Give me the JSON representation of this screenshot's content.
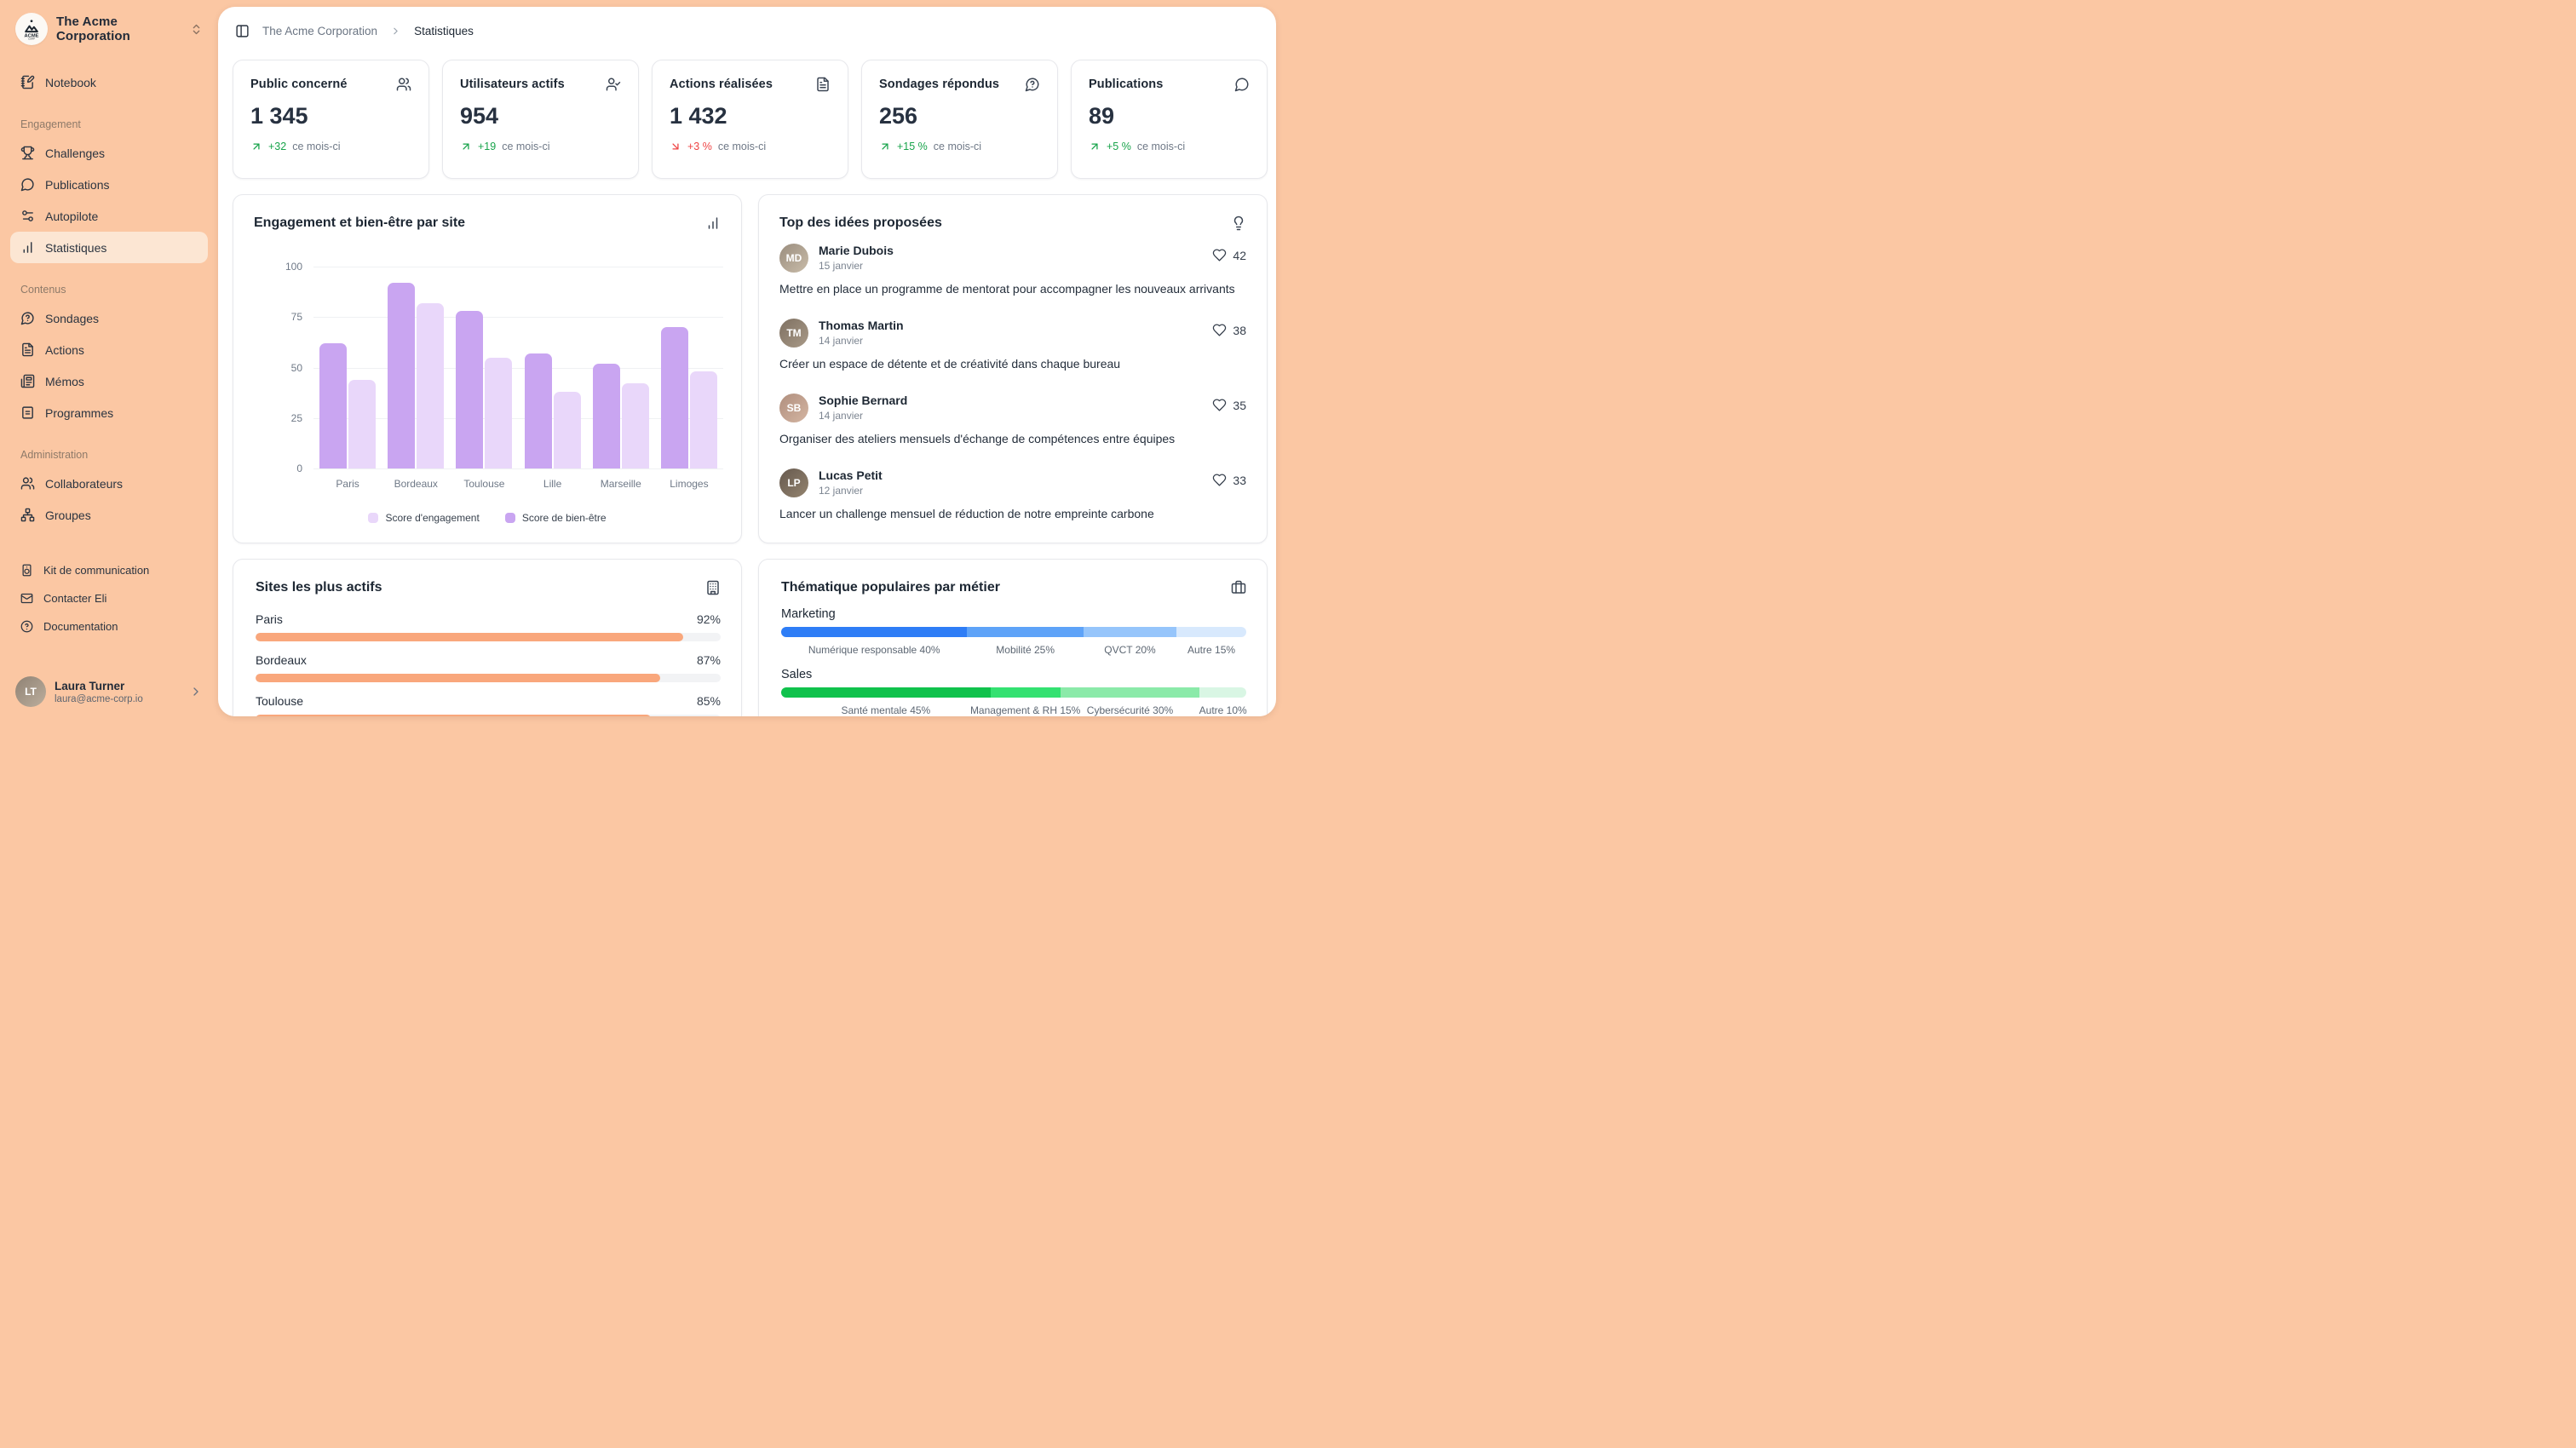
{
  "sidebar": {
    "org_name": "The Acme Corporation",
    "sections": [
      {
        "items": [
          {
            "label": "Notebook",
            "icon": "notebook"
          }
        ]
      },
      {
        "label": "Engagement",
        "items": [
          {
            "label": "Challenges",
            "icon": "trophy"
          },
          {
            "label": "Publications",
            "icon": "message-circle"
          },
          {
            "label": "Autopilote",
            "icon": "sliders"
          },
          {
            "label": "Statistiques",
            "icon": "bar-chart",
            "active": true
          }
        ]
      },
      {
        "label": "Contenus",
        "items": [
          {
            "label": "Sondages",
            "icon": "message-question"
          },
          {
            "label": "Actions",
            "icon": "file-text"
          },
          {
            "label": "Mémos",
            "icon": "newspaper"
          },
          {
            "label": "Programmes",
            "icon": "layout-list"
          }
        ]
      },
      {
        "label": "Administration",
        "items": [
          {
            "label": "Collaborateurs",
            "icon": "users"
          },
          {
            "label": "Groupes",
            "icon": "network"
          }
        ]
      },
      {
        "gap": true,
        "small": true,
        "items": [
          {
            "label": "Kit de communication",
            "icon": "speaker"
          },
          {
            "label": "Contacter Eli",
            "icon": "mail"
          },
          {
            "label": "Documentation",
            "icon": "help-circle"
          }
        ]
      }
    ],
    "user": {
      "name": "Laura Turner",
      "email": "laura@acme-corp.io"
    }
  },
  "breadcrumb": {
    "root": "The Acme Corporation",
    "current": "Statistiques"
  },
  "stat_cards": [
    {
      "title": "Public concerné",
      "icon": "users",
      "value": "1 345",
      "delta": "+32",
      "delta_suffix": "ce mois-ci",
      "trend": "up"
    },
    {
      "title": "Utilisateurs actifs",
      "icon": "user-check",
      "value": "954",
      "delta": "+19",
      "delta_suffix": "ce mois-ci",
      "trend": "up"
    },
    {
      "title": "Actions réalisées",
      "icon": "file-text",
      "value": "1 432",
      "delta": "+3 %",
      "delta_suffix": "ce mois-ci",
      "trend": "down"
    },
    {
      "title": "Sondages répondus",
      "icon": "message-question",
      "value": "256",
      "delta": "+15 %",
      "delta_suffix": "ce mois-ci",
      "trend": "up"
    },
    {
      "title": "Publications",
      "icon": "message-circle",
      "value": "89",
      "delta": "+5 %",
      "delta_suffix": "ce mois-ci",
      "trend": "up"
    }
  ],
  "chart_card": {
    "title": "Engagement et bien-être par site",
    "icon": "bar-chart"
  },
  "chart_data": {
    "type": "bar",
    "title": "Engagement et bien-être par site",
    "categories": [
      "Paris",
      "Bordeaux",
      "Toulouse",
      "Lille",
      "Marseille",
      "Limoges"
    ],
    "series": [
      {
        "name": "Score d'engagement",
        "color": "#e9d7fa",
        "values": [
          44,
          82,
          55,
          38,
          42,
          48
        ]
      },
      {
        "name": "Score de bien-être",
        "color": "#c9a5f1",
        "values": [
          62,
          92,
          78,
          57,
          52,
          70
        ]
      }
    ],
    "bar_order_left_to_right": [
      "Score de bien-être",
      "Score d'engagement"
    ],
    "ylim": [
      0,
      100
    ],
    "yticks": [
      0,
      25,
      50,
      75,
      100
    ],
    "grid": true,
    "legend_position": "bottom"
  },
  "ideas": {
    "title": "Top des idées proposées",
    "icon": "lightbulb",
    "items": [
      {
        "name": "Marie Dubois",
        "date": "15 janvier",
        "likes": 42,
        "text": "Mettre en place un programme de mentorat pour accompagner les nouveaux arrivants"
      },
      {
        "name": "Thomas Martin",
        "date": "14 janvier",
        "likes": 38,
        "text": "Créer un espace de détente et de créativité dans chaque bureau"
      },
      {
        "name": "Sophie Bernard",
        "date": "14 janvier",
        "likes": 35,
        "text": "Organiser des ateliers mensuels d'échange de compétences entre équipes"
      },
      {
        "name": "Lucas Petit",
        "date": "12 janvier",
        "likes": 33,
        "text": "Lancer un challenge mensuel de réduction de notre empreinte carbone"
      }
    ]
  },
  "sites": {
    "title": "Sites les plus actifs",
    "icon": "building",
    "bar_color": "#f9a77c",
    "items": [
      {
        "name": "Paris",
        "pct": 92
      },
      {
        "name": "Bordeaux",
        "pct": 87
      },
      {
        "name": "Toulouse",
        "pct": 85
      }
    ]
  },
  "themes": {
    "title": "Thématique populaires par métier",
    "icon": "briefcase",
    "groups": [
      {
        "name": "Marketing",
        "segments": [
          {
            "label": "Numérique responsable",
            "pct": 40,
            "color": "#2e7df6"
          },
          {
            "label": "Mobilité",
            "pct": 25,
            "color": "#5ea3f8"
          },
          {
            "label": "QVCT",
            "pct": 20,
            "color": "#96c5fb"
          },
          {
            "label": "Autre",
            "pct": 15,
            "color": "#d8e9fd"
          }
        ]
      },
      {
        "name": "Sales",
        "segments": [
          {
            "label": "Santé mentale",
            "pct": 45,
            "color": "#10c24c"
          },
          {
            "label": "Management & RH",
            "pct": 15,
            "color": "#34e171"
          },
          {
            "label": "Cybersécurité",
            "pct": 30,
            "color": "#8beaa9"
          },
          {
            "label": "Autre",
            "pct": 10,
            "color": "#d9f6e4"
          }
        ]
      }
    ]
  },
  "colors": {
    "sidebar_bg": "#fbc7a3",
    "active_item_bg": "#fce6d3",
    "delta_up": "#17a34a",
    "delta_down": "#ef4444",
    "progress_orange": "#f9a77c",
    "bar_engagement": "#e9d7fa",
    "bar_bien_etre": "#c9a5f1"
  }
}
